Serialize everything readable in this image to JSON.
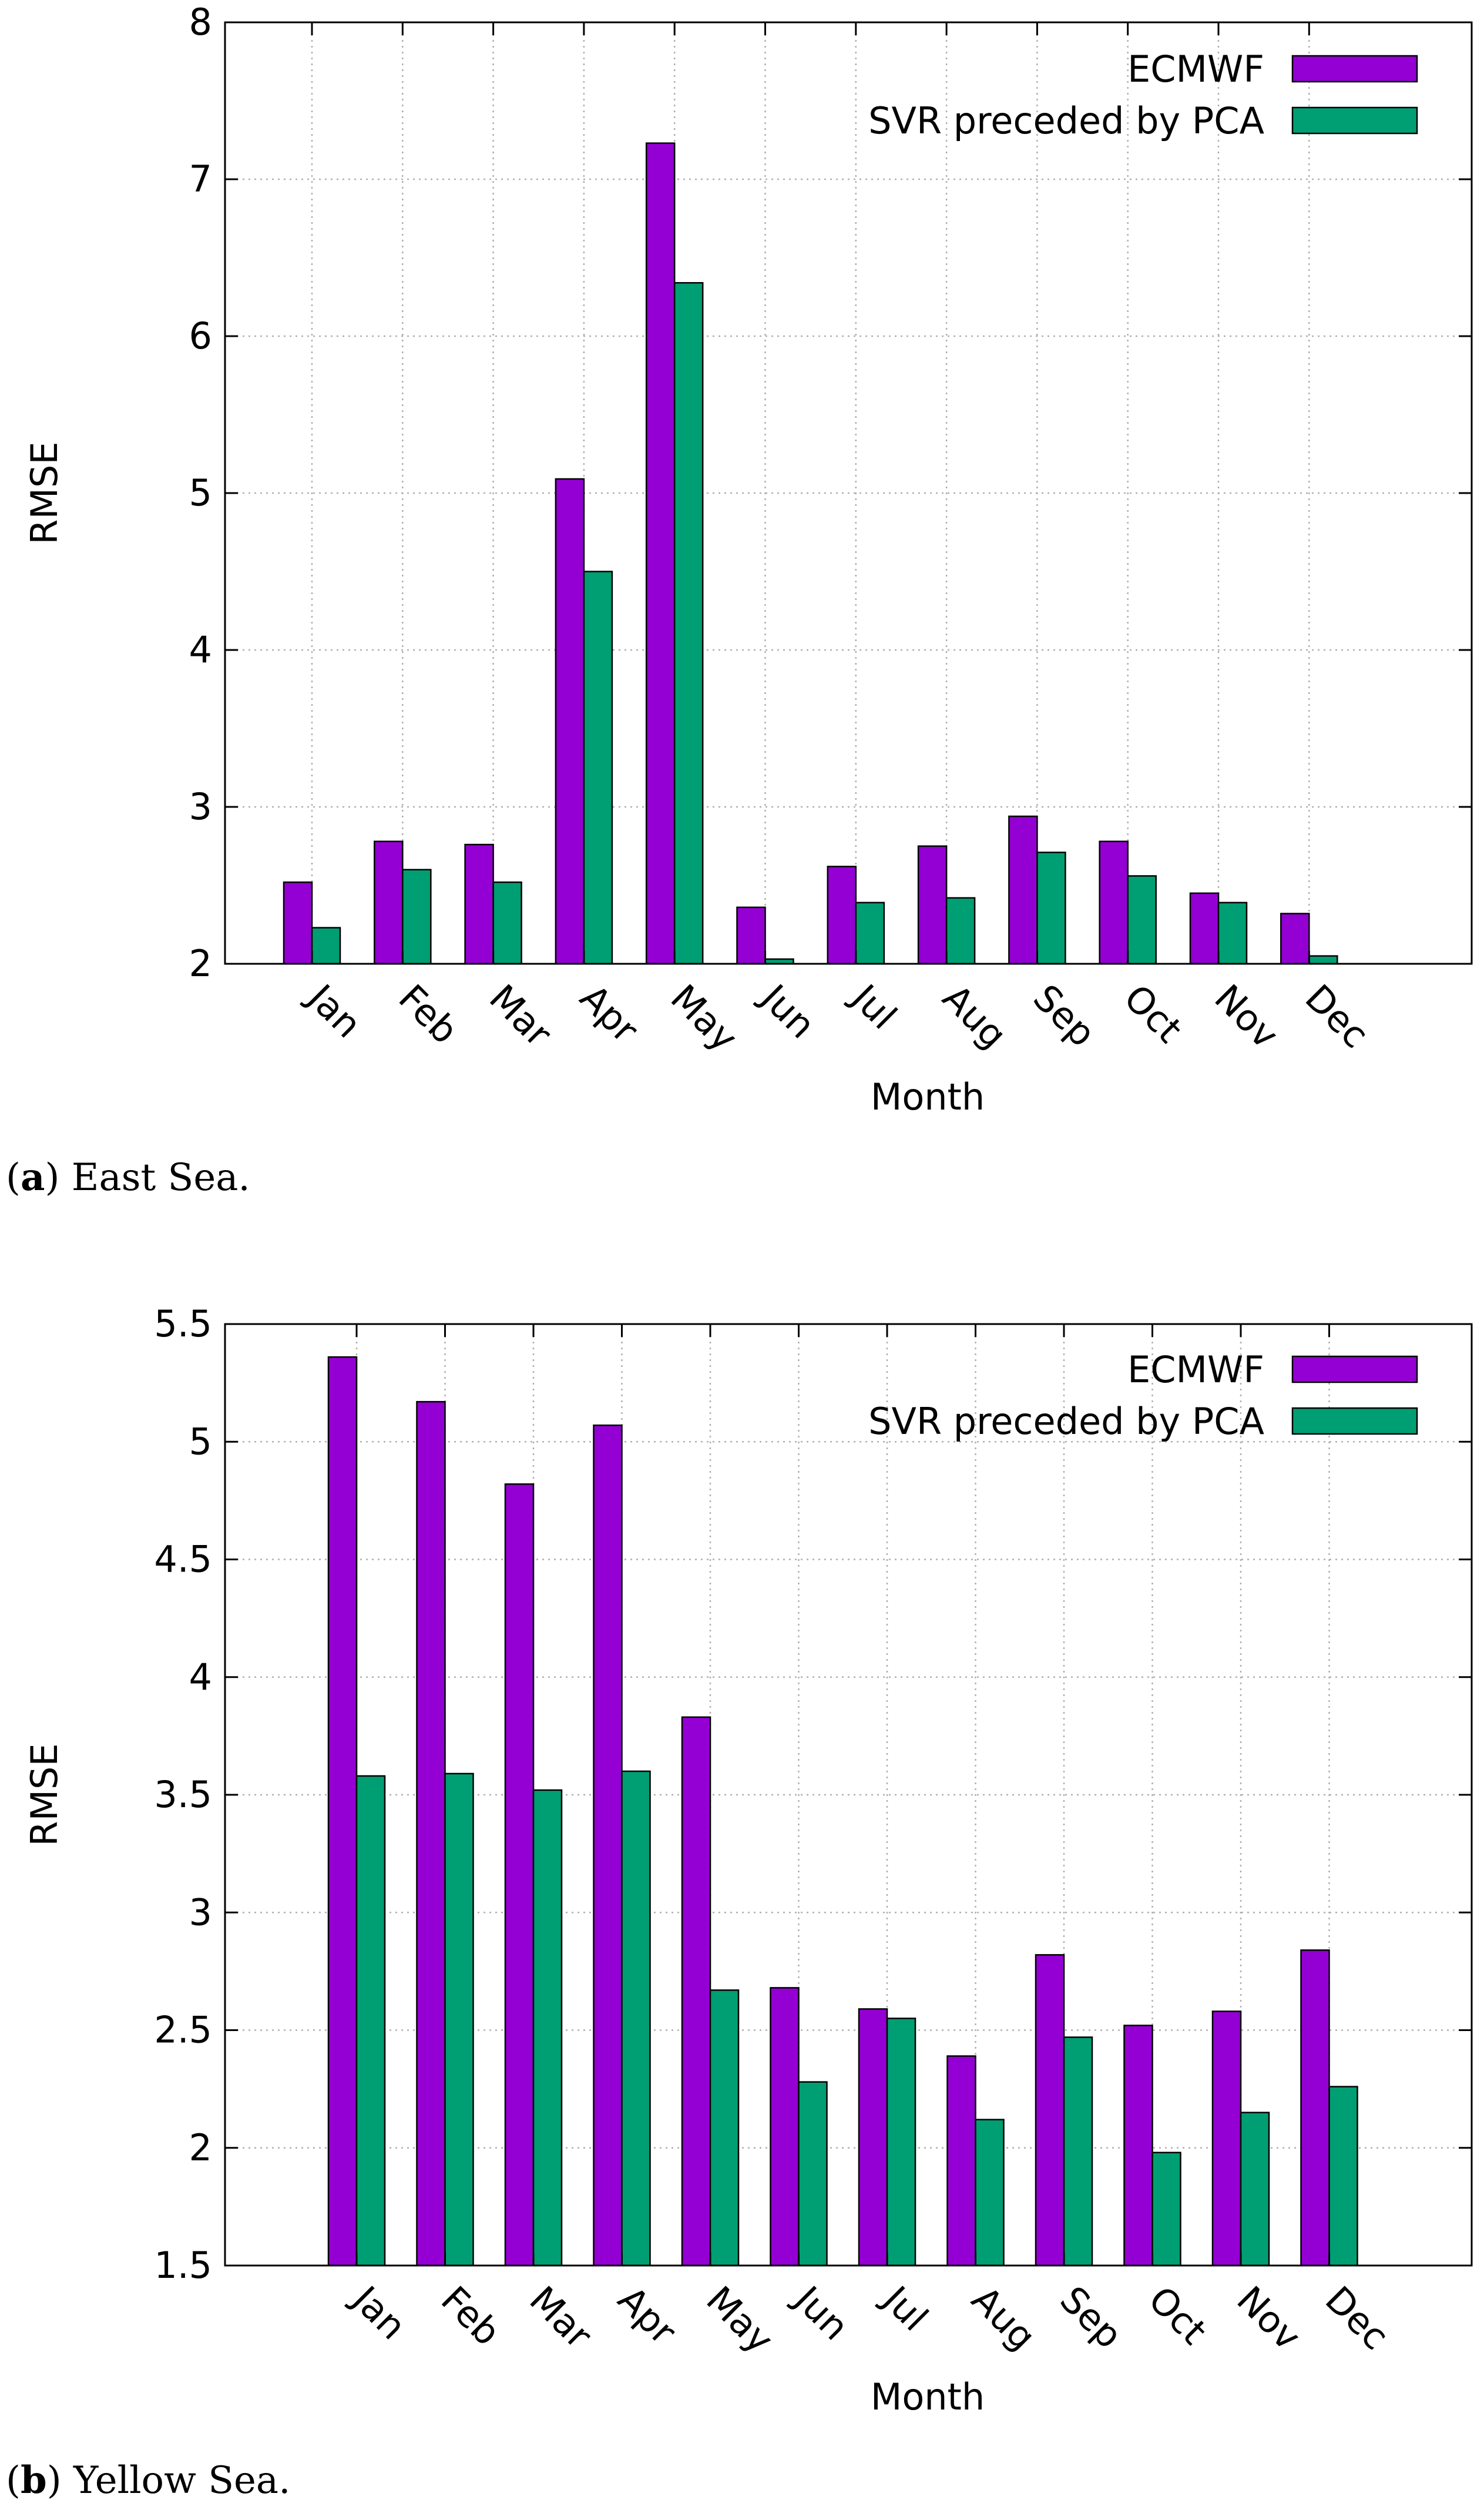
{
  "chart_data": [
    {
      "type": "bar",
      "caption_letter": "a",
      "caption_text": " East Sea.",
      "xlabel": "Month",
      "ylabel": "RMSE",
      "ylim": [
        2,
        8
      ],
      "yticks": [
        2,
        3,
        4,
        5,
        6,
        7,
        8
      ],
      "ytick_labels": [
        "2",
        "3",
        "4",
        "5",
        "6",
        "7",
        "8"
      ],
      "categories": [
        "Jan",
        "Feb",
        "Mar",
        "Apr",
        "May",
        "Jun",
        "Jul",
        "Aug",
        "Sep",
        "Oct",
        "Nov",
        "Dec"
      ],
      "legend_position": "top-right",
      "series": [
        {
          "name": "ECMWF",
          "color": "#9400d3",
          "values": [
            2.52,
            2.78,
            2.76,
            5.09,
            7.23,
            2.36,
            2.62,
            2.75,
            2.94,
            2.78,
            2.45,
            2.32
          ]
        },
        {
          "name": "SVR preceded by PCA",
          "color": "#009e73",
          "values": [
            2.23,
            2.6,
            2.52,
            4.5,
            6.34,
            2.03,
            2.39,
            2.42,
            2.71,
            2.56,
            2.39,
            2.05
          ]
        }
      ]
    },
    {
      "type": "bar",
      "caption_letter": "b",
      "caption_text": " Yellow Sea.",
      "xlabel": "Month",
      "ylabel": "RMSE",
      "ylim": [
        1.5,
        5.5
      ],
      "yticks": [
        1.5,
        2,
        2.5,
        3,
        3.5,
        4,
        4.5,
        5,
        5.5
      ],
      "ytick_labels": [
        "1.5",
        "2",
        "2.5",
        "3",
        "3.5",
        "4",
        "4.5",
        "5",
        "5.5"
      ],
      "categories": [
        "Jan",
        "Feb",
        "Mar",
        "Apr",
        "May",
        "Jun",
        "Jul",
        "Aug",
        "Sep",
        "Oct",
        "Nov",
        "Dec"
      ],
      "legend_position": "top-right",
      "series": [
        {
          "name": "ECMWF",
          "color": "#9400d3",
          "values": [
            5.36,
            5.17,
            4.82,
            5.07,
            3.83,
            2.68,
            2.59,
            2.39,
            2.82,
            2.52,
            2.58,
            2.84
          ]
        },
        {
          "name": "SVR preceded by PCA",
          "color": "#009e73",
          "values": [
            3.58,
            3.59,
            3.52,
            3.6,
            2.67,
            2.28,
            2.55,
            2.12,
            2.47,
            1.98,
            2.15,
            2.26
          ]
        }
      ]
    }
  ]
}
